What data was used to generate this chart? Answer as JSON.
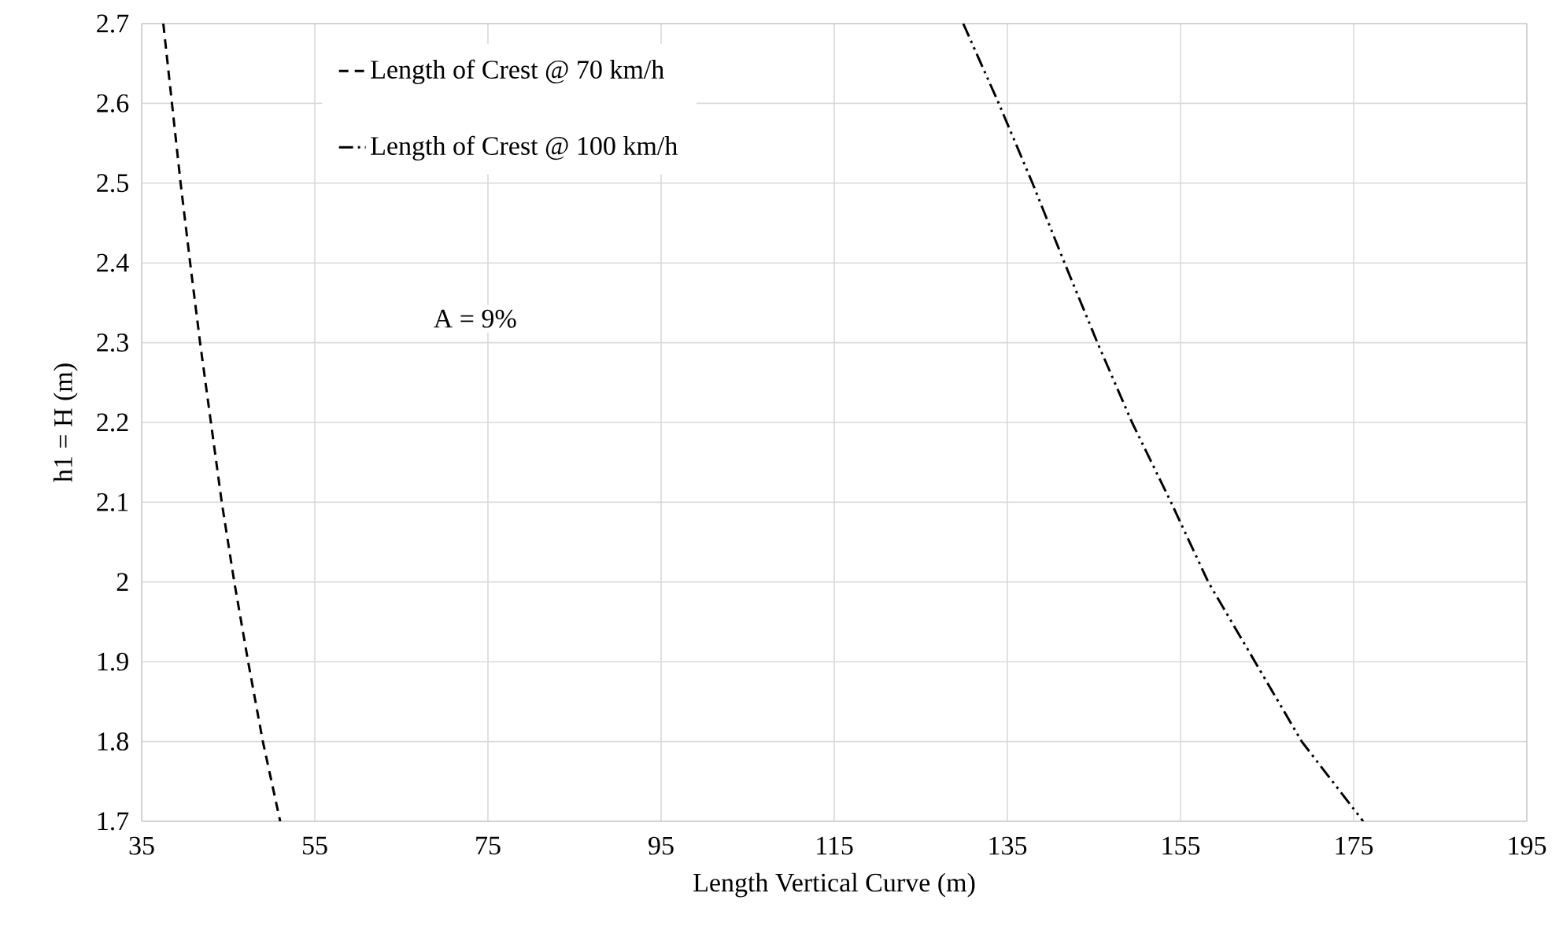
{
  "chart_data": {
    "type": "line",
    "xlabel": "Length Vertical Curve (m)",
    "ylabel": "h1 = H (m)",
    "xlim": [
      35,
      195
    ],
    "ylim": [
      1.7,
      2.7
    ],
    "xticks": [
      35,
      55,
      75,
      95,
      115,
      135,
      155,
      175,
      195
    ],
    "yticks": [
      1.7,
      1.8,
      1.9,
      2,
      2.1,
      2.2,
      2.3,
      2.4,
      2.5,
      2.6,
      2.7
    ],
    "grid": true,
    "legend": "top left",
    "marker": "none",
    "annotations": [
      "A = 9%"
    ],
    "series": [
      {
        "name": "Length of Crest @ 70 km/h",
        "color": "#000000",
        "line_style": "dashed",
        "x": [
          37.5,
          38.5,
          39.5,
          40.6,
          41.75,
          43.0,
          44.25,
          45.7,
          47.3,
          49.0,
          51.0
        ],
        "values": [
          2.7,
          2.6,
          2.5,
          2.4,
          2.3,
          2.2,
          2.1,
          2.0,
          1.9,
          1.8,
          1.7
        ]
      },
      {
        "name": "Length of Crest @ 100 km/h",
        "color": "#000000",
        "line_style": "dashdotdotted",
        "x": [
          129.9,
          134.0,
          137.9,
          141.6,
          145.4,
          149.4,
          153.9,
          158.2,
          163.6,
          169.0,
          176.1
        ],
        "values": [
          2.7,
          2.6,
          2.5,
          2.4,
          2.3,
          2.2,
          2.1,
          2.0,
          1.9,
          1.8,
          1.7
        ]
      }
    ]
  }
}
